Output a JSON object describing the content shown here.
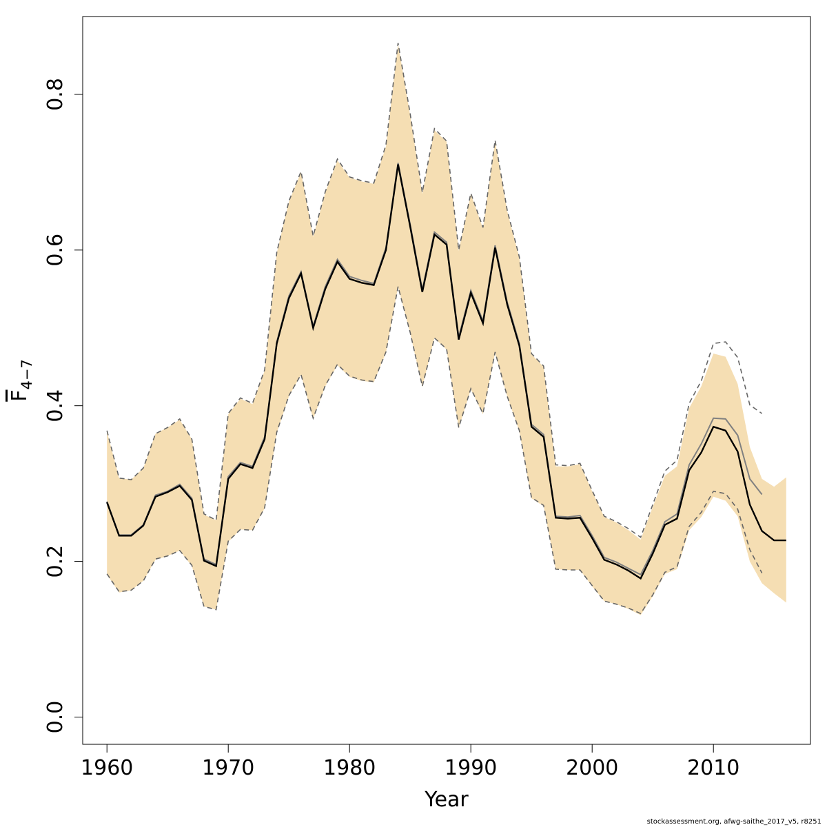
{
  "chart_data": {
    "type": "line",
    "xlabel": "Year",
    "ylabel": {
      "main": "F",
      "sub": "4−7"
    },
    "xlim": [
      1958,
      2018
    ],
    "ylim": [
      -0.035,
      0.9
    ],
    "x_ticks": [
      1960,
      1970,
      1980,
      1990,
      2000,
      2010
    ],
    "y_ticks": [
      0.0,
      0.2,
      0.4,
      0.6,
      0.8
    ],
    "x_tick_labels": [
      "1960",
      "1970",
      "1980",
      "1990",
      "2000",
      "2010"
    ],
    "y_tick_labels": [
      "0.0",
      "0.2",
      "0.4",
      "0.6",
      "0.8"
    ],
    "grid": false,
    "colors": {
      "band": "#f5deb3",
      "current": "#000000",
      "previous": "#808080",
      "previous_ci": "#666666"
    },
    "series": [
      {
        "role": "current_estimate",
        "x": [
          1960,
          1961,
          1962,
          1963,
          1964,
          1965,
          1966,
          1967,
          1968,
          1969,
          1970,
          1971,
          1972,
          1973,
          1974,
          1975,
          1976,
          1977,
          1978,
          1979,
          1980,
          1981,
          1982,
          1983,
          1984,
          1985,
          1986,
          1987,
          1988,
          1989,
          1990,
          1991,
          1992,
          1993,
          1994,
          1995,
          1996,
          1997,
          1998,
          1999,
          2000,
          2001,
          2002,
          2003,
          2004,
          2005,
          2006,
          2007,
          2008,
          2009,
          2010,
          2011,
          2012,
          2013,
          2014,
          2015,
          2016
        ],
        "y": [
          0.276,
          0.233,
          0.233,
          0.246,
          0.283,
          0.289,
          0.297,
          0.279,
          0.201,
          0.194,
          0.306,
          0.325,
          0.32,
          0.357,
          0.48,
          0.538,
          0.57,
          0.5,
          0.55,
          0.585,
          0.563,
          0.558,
          0.555,
          0.6,
          0.71,
          0.63,
          0.546,
          0.62,
          0.607,
          0.485,
          0.545,
          0.506,
          0.603,
          0.53,
          0.477,
          0.373,
          0.36,
          0.256,
          0.255,
          0.256,
          0.23,
          0.202,
          0.196,
          0.188,
          0.178,
          0.21,
          0.247,
          0.255,
          0.317,
          0.34,
          0.373,
          0.368,
          0.341,
          0.273,
          0.239,
          0.227,
          0.227
        ]
      },
      {
        "role": "current_lower",
        "x": [
          1960,
          1961,
          1962,
          1963,
          1964,
          1965,
          1966,
          1967,
          1968,
          1969,
          1970,
          1971,
          1972,
          1973,
          1974,
          1975,
          1976,
          1977,
          1978,
          1979,
          1980,
          1981,
          1982,
          1983,
          1984,
          1985,
          1986,
          1987,
          1988,
          1989,
          1990,
          1991,
          1992,
          1993,
          1994,
          1995,
          1996,
          1997,
          1998,
          1999,
          2000,
          2001,
          2002,
          2003,
          2004,
          2005,
          2006,
          2007,
          2008,
          2009,
          2010,
          2011,
          2012,
          2013,
          2014,
          2015,
          2016
        ],
        "y": [
          0.183,
          0.16,
          0.163,
          0.175,
          0.202,
          0.207,
          0.214,
          0.194,
          0.142,
          0.138,
          0.225,
          0.241,
          0.24,
          0.268,
          0.365,
          0.412,
          0.44,
          0.383,
          0.425,
          0.452,
          0.437,
          0.432,
          0.43,
          0.468,
          0.553,
          0.493,
          0.424,
          0.487,
          0.472,
          0.371,
          0.421,
          0.389,
          0.468,
          0.412,
          0.367,
          0.281,
          0.271,
          0.19,
          0.189,
          0.189,
          0.168,
          0.149,
          0.145,
          0.139,
          0.131,
          0.155,
          0.184,
          0.19,
          0.24,
          0.257,
          0.283,
          0.278,
          0.258,
          0.2,
          0.172,
          0.159,
          0.147
        ]
      },
      {
        "role": "current_upper",
        "x": [
          1960,
          1961,
          1962,
          1963,
          1964,
          1965,
          1966,
          1967,
          1968,
          1969,
          1970,
          1971,
          1972,
          1973,
          1974,
          1975,
          1976,
          1977,
          1978,
          1979,
          1980,
          1981,
          1982,
          1983,
          1984,
          1985,
          1986,
          1987,
          1988,
          1989,
          1990,
          1991,
          1992,
          1993,
          1994,
          1995,
          1996,
          1997,
          1998,
          1999,
          2000,
          2001,
          2002,
          2003,
          2004,
          2005,
          2006,
          2007,
          2008,
          2009,
          2010,
          2011,
          2012,
          2013,
          2014,
          2015,
          2016
        ],
        "y": [
          0.367,
          0.307,
          0.305,
          0.32,
          0.364,
          0.372,
          0.382,
          0.357,
          0.26,
          0.253,
          0.389,
          0.409,
          0.402,
          0.445,
          0.596,
          0.662,
          0.7,
          0.617,
          0.674,
          0.715,
          0.693,
          0.688,
          0.685,
          0.733,
          0.865,
          0.773,
          0.672,
          0.754,
          0.739,
          0.599,
          0.672,
          0.628,
          0.74,
          0.65,
          0.59,
          0.466,
          0.45,
          0.322,
          0.322,
          0.325,
          0.29,
          0.257,
          0.25,
          0.24,
          0.228,
          0.27,
          0.31,
          0.322,
          0.397,
          0.425,
          0.467,
          0.463,
          0.428,
          0.347,
          0.306,
          0.296,
          0.308
        ]
      },
      {
        "role": "previous_estimate",
        "x": [
          1960,
          1961,
          1962,
          1963,
          1964,
          1965,
          1966,
          1967,
          1968,
          1969,
          1970,
          1971,
          1972,
          1973,
          1974,
          1975,
          1976,
          1977,
          1978,
          1979,
          1980,
          1981,
          1982,
          1983,
          1984,
          1985,
          1986,
          1987,
          1988,
          1989,
          1990,
          1991,
          1992,
          1993,
          1994,
          1995,
          1996,
          1997,
          1998,
          1999,
          2000,
          2001,
          2002,
          2003,
          2004,
          2005,
          2006,
          2007,
          2008,
          2009,
          2010,
          2011,
          2012,
          2013,
          2014
        ],
        "y": [
          0.277,
          0.234,
          0.234,
          0.247,
          0.285,
          0.29,
          0.299,
          0.281,
          0.203,
          0.196,
          0.309,
          0.327,
          0.322,
          0.36,
          0.482,
          0.541,
          0.572,
          0.502,
          0.553,
          0.588,
          0.566,
          0.561,
          0.557,
          0.603,
          0.712,
          0.633,
          0.549,
          0.623,
          0.61,
          0.488,
          0.548,
          0.509,
          0.606,
          0.533,
          0.48,
          0.376,
          0.363,
          0.258,
          0.257,
          0.259,
          0.233,
          0.205,
          0.199,
          0.191,
          0.183,
          0.214,
          0.251,
          0.261,
          0.324,
          0.351,
          0.384,
          0.383,
          0.362,
          0.306,
          0.286
        ]
      },
      {
        "role": "previous_lower",
        "x": [
          1960,
          1961,
          1962,
          1963,
          1964,
          1965,
          1966,
          1967,
          1968,
          1969,
          1970,
          1971,
          1972,
          1973,
          1974,
          1975,
          1976,
          1977,
          1978,
          1979,
          1980,
          1981,
          1982,
          1983,
          1984,
          1985,
          1986,
          1987,
          1988,
          1989,
          1990,
          1991,
          1992,
          1993,
          1994,
          1995,
          1996,
          1997,
          1998,
          1999,
          2000,
          2001,
          2002,
          2003,
          2004,
          2005,
          2006,
          2007,
          2008,
          2009,
          2010,
          2011,
          2012,
          2013,
          2014
        ],
        "y": [
          0.184,
          0.161,
          0.163,
          0.175,
          0.203,
          0.207,
          0.214,
          0.195,
          0.142,
          0.138,
          0.226,
          0.241,
          0.24,
          0.269,
          0.366,
          0.413,
          0.44,
          0.384,
          0.426,
          0.453,
          0.438,
          0.433,
          0.431,
          0.469,
          0.553,
          0.494,
          0.425,
          0.487,
          0.473,
          0.372,
          0.422,
          0.39,
          0.469,
          0.412,
          0.368,
          0.282,
          0.272,
          0.19,
          0.189,
          0.189,
          0.169,
          0.149,
          0.145,
          0.14,
          0.133,
          0.157,
          0.186,
          0.193,
          0.245,
          0.263,
          0.29,
          0.287,
          0.267,
          0.215,
          0.185
        ]
      },
      {
        "role": "previous_upper",
        "x": [
          1960,
          1961,
          1962,
          1963,
          1964,
          1965,
          1966,
          1967,
          1968,
          1969,
          1970,
          1971,
          1972,
          1973,
          1974,
          1975,
          1976,
          1977,
          1978,
          1979,
          1980,
          1981,
          1982,
          1983,
          1984,
          1985,
          1986,
          1987,
          1988,
          1989,
          1990,
          1991,
          1992,
          1993,
          1994,
          1995,
          1996,
          1997,
          1998,
          1999,
          2000,
          2001,
          2002,
          2003,
          2004,
          2005,
          2006,
          2007,
          2008,
          2009,
          2010,
          2011,
          2012,
          2013,
          2014
        ],
        "y": [
          0.368,
          0.307,
          0.305,
          0.32,
          0.364,
          0.372,
          0.383,
          0.357,
          0.261,
          0.253,
          0.39,
          0.41,
          0.403,
          0.446,
          0.597,
          0.663,
          0.701,
          0.618,
          0.675,
          0.717,
          0.694,
          0.689,
          0.686,
          0.735,
          0.866,
          0.775,
          0.674,
          0.756,
          0.74,
          0.6,
          0.673,
          0.629,
          0.741,
          0.651,
          0.591,
          0.467,
          0.451,
          0.324,
          0.323,
          0.326,
          0.291,
          0.258,
          0.251,
          0.242,
          0.231,
          0.273,
          0.316,
          0.33,
          0.403,
          0.432,
          0.48,
          0.482,
          0.462,
          0.401,
          0.39
        ]
      }
    ]
  },
  "footer": "stockassessment.org, afwg-saithe_2017_v5, r8251"
}
